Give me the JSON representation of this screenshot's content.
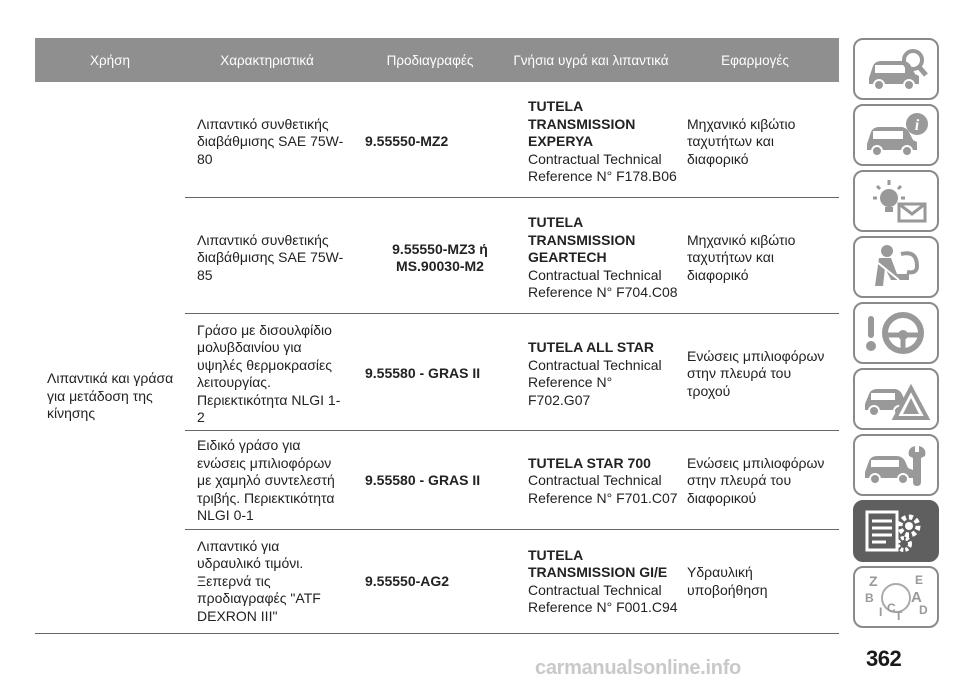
{
  "table": {
    "headers": [
      "Χρήση",
      "Χαρακτηριστικά",
      "Προδιαγραφές",
      "Γνήσια υγρά και λιπαντικά",
      "Εφαρμογές"
    ],
    "usage": "Λιπαντικά και γράσα για μετάδοση της κίνησης",
    "rows": [
      {
        "product": "Λιπαντικό συνθετικής διαβάθμισης SAE 75W-80",
        "spec": "9.55550-MZ2",
        "fluid_name": "TUTELA TRANSMISSION EXPERYA",
        "fluid_ref": "Contractual Technical Reference N° F178.B06",
        "application": "Μηχανικό κιβώτιο ταχυτήτων και διαφορικό"
      },
      {
        "product": "Λιπαντικό συνθετικής διαβάθμισης SAE 75W-85",
        "spec": "9.55550-MZ3 ή MS.90030-M2",
        "fluid_name": "TUTELA TRANSMISSION GEARTECH",
        "fluid_ref": "Contractual Technical Reference N° F704.C08",
        "application": "Μηχανικό κιβώτιο ταχυτήτων και διαφορικό"
      },
      {
        "product": "Γράσο με δισουλφίδιο μολυβδαινίου για υψηλές θερμοκρασίες λειτουργίας. Περιεκτικότητα NLGI 1-2",
        "spec": "9.55580 - GRAS II",
        "fluid_name": "TUTELA ALL STAR",
        "fluid_ref": "Contractual Technical Reference N° F702.G07",
        "application": "Ενώσεις μπιλιοφόρων στην πλευρά του τροχού"
      },
      {
        "product": "Ειδικό γράσο για ενώσεις μπιλιοφόρων με χαμηλό συντελεστή τριβής. Περιεκτικότητα NLGI 0-1",
        "spec": "9.55580 - GRAS II",
        "fluid_name": "TUTELA STAR 700",
        "fluid_ref": "Contractual Technical Reference N° F701.C07",
        "application": "Ενώσεις μπιλιοφόρων στην πλευρά του διαφορικού"
      },
      {
        "product": "Λιπαντικό για υδραυλικό τιμόνι. Ξεπερνά τις προδιαγραφές \"ATF DEXRON III\"",
        "spec": "9.55550-AG2",
        "fluid_name": "TUTELA TRANSMISSION GI/E",
        "fluid_ref": "Contractual Technical Reference N° F001.C94",
        "application": "Υδραυλική υποβοήθηση"
      }
    ]
  },
  "sidebar": {
    "tabs": [
      {
        "icon": "car-search-icon",
        "active": false
      },
      {
        "icon": "car-info-icon",
        "active": false
      },
      {
        "icon": "warning-lights-message-icon",
        "active": false
      },
      {
        "icon": "seat-airbag-icon",
        "active": false
      },
      {
        "icon": "steering-wheel-emergency-icon",
        "active": false
      },
      {
        "icon": "car-maintenance-icon",
        "active": false
      },
      {
        "icon": "technical-data-icon",
        "active": true
      },
      {
        "icon": "alphabetical-index-icon",
        "active": false
      }
    ],
    "index_letters": [
      "Z",
      "E",
      "B",
      "A",
      "I",
      "C",
      "T",
      "D"
    ]
  },
  "page_number": "362",
  "watermark": "carmanualsonline.info",
  "colors": {
    "header_bg": "#8f8f8f",
    "tab_border": "#8a8a8a",
    "active_tab": "#5f5f5f"
  }
}
